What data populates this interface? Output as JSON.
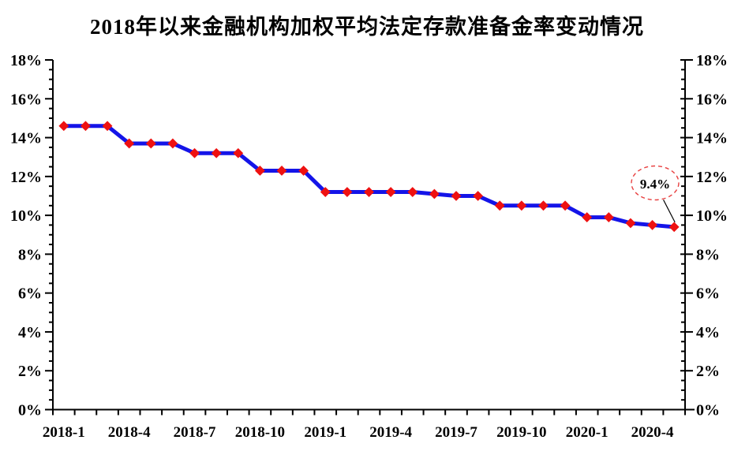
{
  "title": "2018年以来金融机构加权平均法定存款准备金率变动情况",
  "colors": {
    "background": "#ffffff",
    "title": "#000000",
    "axis": "#000000",
    "line": "#1414e8",
    "marker": "#ee1111",
    "annotation_border": "#e84040",
    "annotation_text": "#000000",
    "leader_line": "#000000"
  },
  "chart_data": {
    "type": "line",
    "title": "2018年以来金融机构加权平均法定存款准备金率变动情况",
    "x": [
      "2018-1",
      "2018-2",
      "2018-3",
      "2018-4",
      "2018-5",
      "2018-6",
      "2018-7",
      "2018-8",
      "2018-9",
      "2018-10",
      "2018-11",
      "2018-12",
      "2019-1",
      "2019-2",
      "2019-3",
      "2019-4",
      "2019-5",
      "2019-6",
      "2019-7",
      "2019-8",
      "2019-9",
      "2019-10",
      "2019-11",
      "2019-12",
      "2020-1",
      "2020-2",
      "2020-3",
      "2020-4",
      "2020-5"
    ],
    "values": [
      14.6,
      14.6,
      14.6,
      13.7,
      13.7,
      13.7,
      13.2,
      13.2,
      13.2,
      12.3,
      12.3,
      12.3,
      11.2,
      11.2,
      11.2,
      11.2,
      11.2,
      11.1,
      11.0,
      11.0,
      10.5,
      10.5,
      10.5,
      10.5,
      9.9,
      9.9,
      9.6,
      9.5,
      9.4
    ],
    "unit": "%",
    "xlabel": "",
    "ylabel": "",
    "ylim": [
      0,
      18
    ],
    "y_major_step": 2,
    "y_minor_step": 0.5,
    "y_tick_labels": [
      "0%",
      "2%",
      "4%",
      "6%",
      "8%",
      "10%",
      "12%",
      "14%",
      "16%",
      "18%"
    ],
    "x_tick_labels": [
      "2018-1",
      "2018-4",
      "2018-7",
      "2018-10",
      "2019-1",
      "2019-4",
      "2019-7",
      "2019-10",
      "2020-1",
      "2020-4"
    ],
    "grid": false,
    "legend": false,
    "dual_y_axis": true,
    "annotation": {
      "text": "9.4%",
      "target_x": "2020-5",
      "target_value": 9.4
    }
  }
}
